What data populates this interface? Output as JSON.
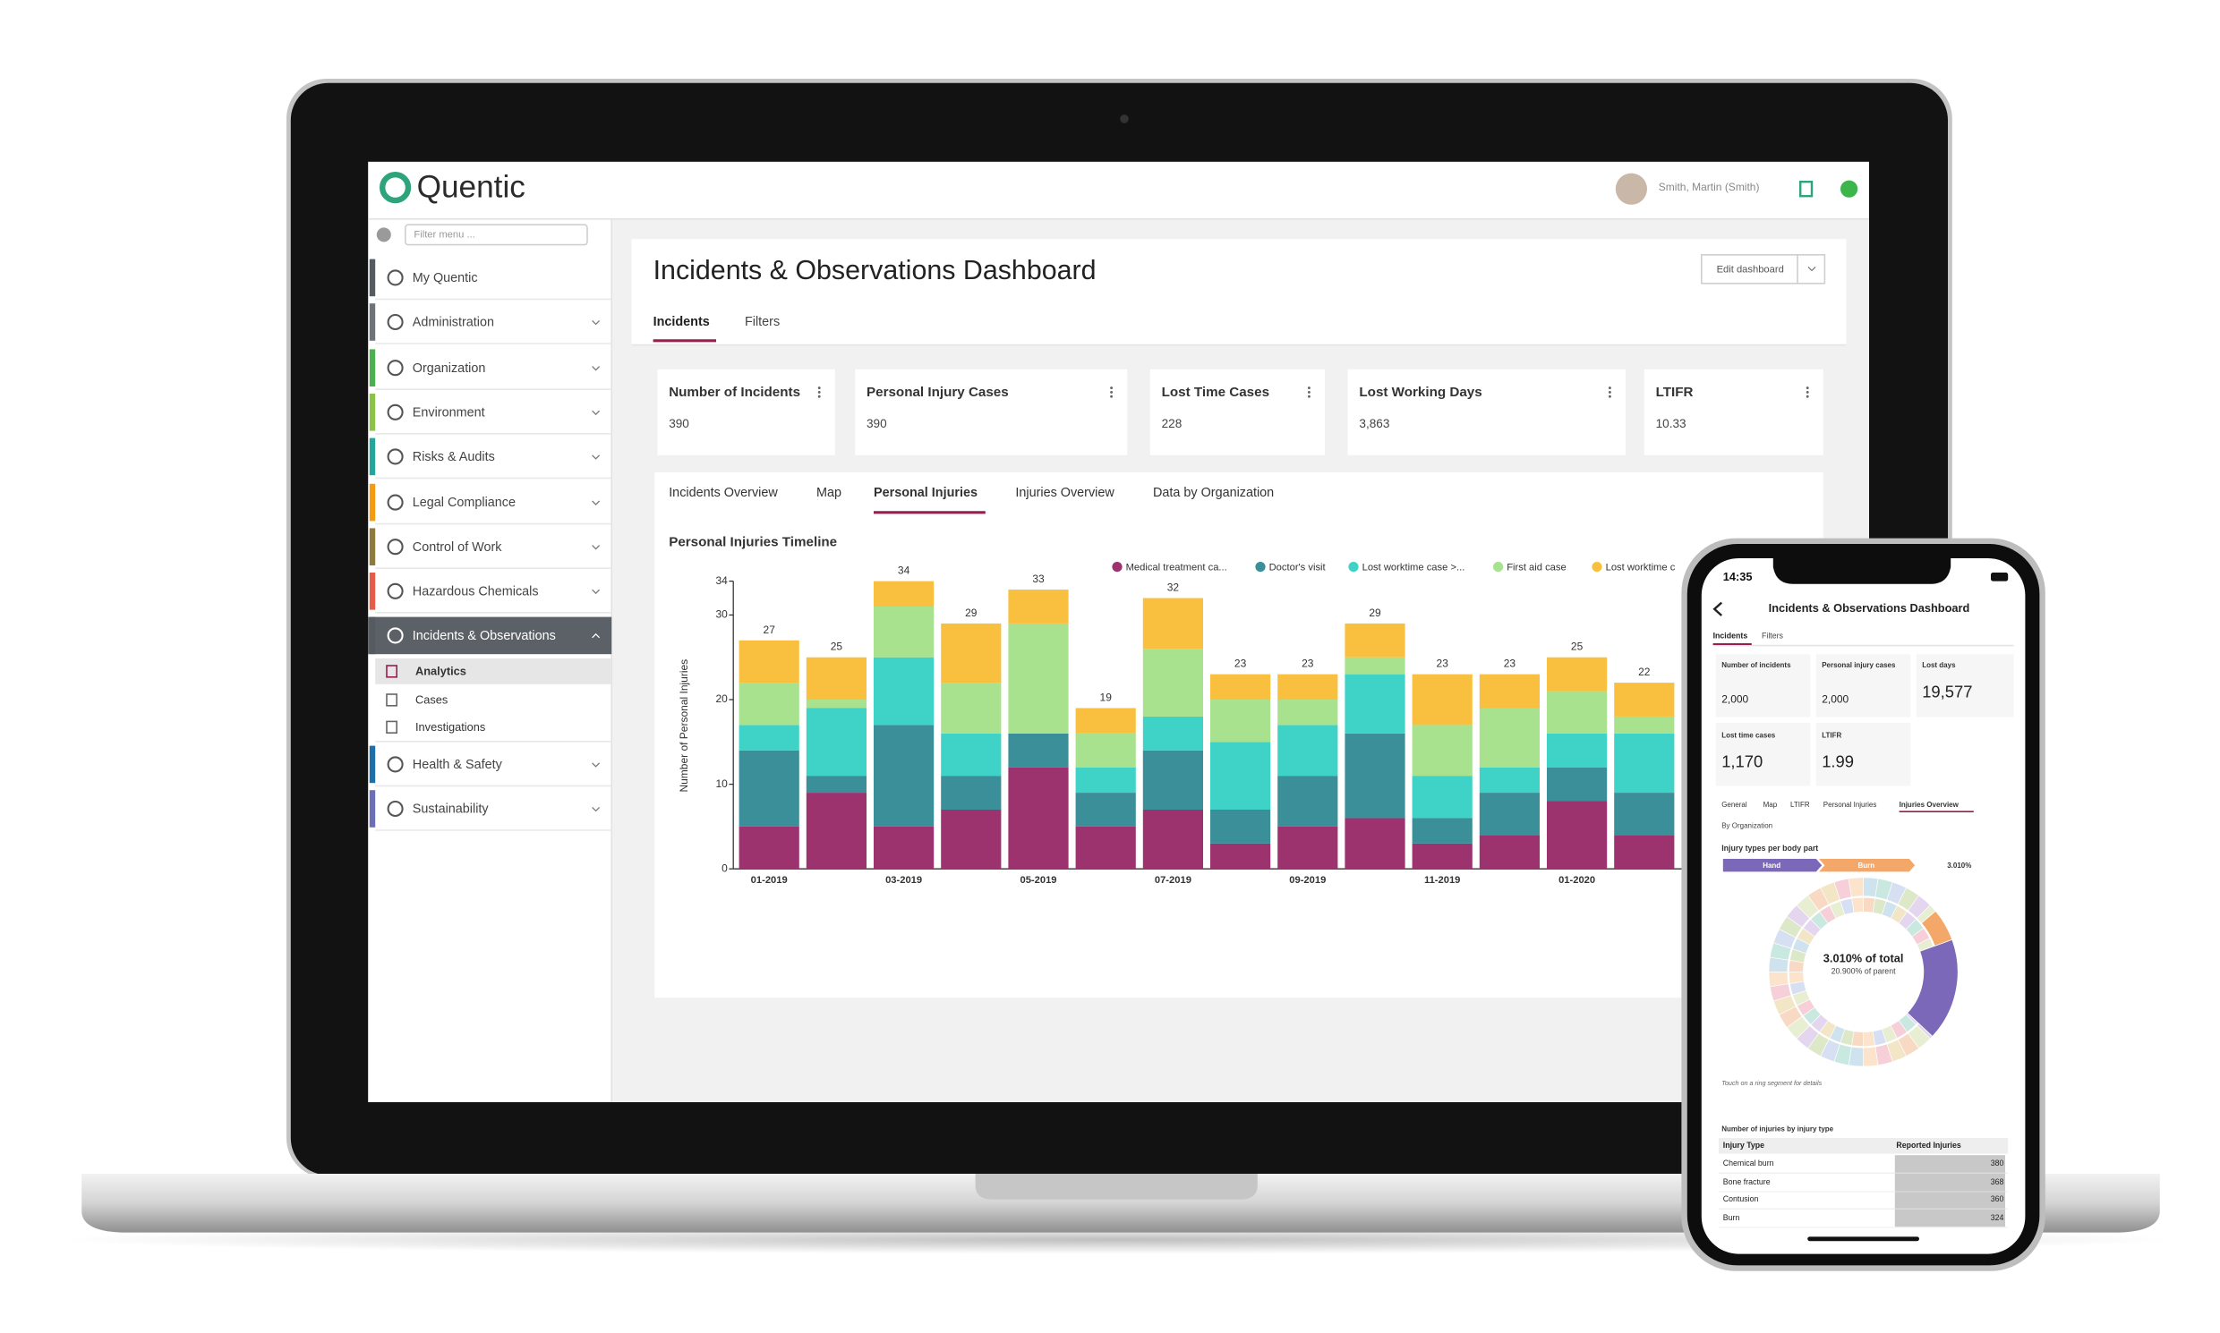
{
  "app": {
    "brand": "Quentic",
    "user": "Smith, Martin (Smith)",
    "filter_placeholder": "Filter menu ..."
  },
  "menu": [
    "My Quentic",
    "Administration",
    "Organization",
    "Environment",
    "Risks & Audits",
    "Legal Compliance",
    "Control of Work",
    "Hazardous Chemicals",
    "Incidents & Observations"
  ],
  "submenu": [
    "Analytics",
    "Cases",
    "Investigations"
  ],
  "menu_after": [
    "Health & Safety",
    "Sustainability"
  ],
  "dashboard": {
    "title": "Incidents & Observations Dashboard",
    "edit_button": "Edit dashboard",
    "tabs": [
      "Incidents",
      "Filters"
    ],
    "kpis": [
      {
        "label": "Number of Incidents",
        "value": "390"
      },
      {
        "label": "Personal Injury Cases",
        "value": "390"
      },
      {
        "label": "Lost Time Cases",
        "value": "228"
      },
      {
        "label": "Lost Working Days",
        "value": "3,863"
      },
      {
        "label": "LTIFR",
        "value": "10.33"
      }
    ],
    "chart_tabs": [
      "Incidents Overview",
      "Map",
      "Personal Injuries",
      "Injuries Overview",
      "Data by Organization"
    ]
  },
  "chart_data": {
    "type": "stacked-bar",
    "title": "Personal Injuries Timeline",
    "y_label": "Number of Personal Injuries",
    "categories": [
      "01-2019",
      null,
      "03-2019",
      null,
      "05-2019",
      null,
      "07-2019",
      null,
      "09-2019",
      null,
      "11-2019",
      null,
      "01-2020",
      null
    ],
    "series": [
      {
        "name": "Medical treatment ca...",
        "color": "#9c336f",
        "values": [
          5,
          9,
          5,
          7,
          12,
          5,
          7,
          3,
          5,
          6,
          3,
          4,
          8,
          4
        ]
      },
      {
        "name": "Doctor's visit",
        "color": "#3a8f99",
        "values": [
          9,
          2,
          12,
          4,
          4,
          4,
          7,
          4,
          6,
          10,
          3,
          5,
          4,
          5
        ]
      },
      {
        "name": "Lost worktime case >...",
        "color": "#3fd2c7",
        "values": [
          3,
          8,
          8,
          5,
          0,
          3,
          4,
          8,
          6,
          7,
          5,
          3,
          4,
          7
        ]
      },
      {
        "name": "First aid case",
        "color": "#a8e28e",
        "values": [
          5,
          1,
          6,
          6,
          13,
          4,
          8,
          5,
          3,
          2,
          6,
          7,
          5,
          2
        ]
      },
      {
        "name": "Lost worktime c",
        "color": "#f8c03e",
        "values": [
          5,
          5,
          3,
          7,
          4,
          3,
          6,
          3,
          3,
          4,
          6,
          4,
          4,
          4
        ]
      }
    ],
    "totals": [
      27,
      25,
      34,
      29,
      33,
      19,
      32,
      23,
      23,
      29,
      23,
      23,
      25,
      22
    ],
    "ylim": [
      0,
      34
    ],
    "yticks": [
      0,
      10,
      20,
      30,
      34
    ],
    "grid": false
  },
  "phone": {
    "time": "14:35",
    "title": "Incidents & Observations Dashboard",
    "tabs": [
      "Incidents",
      "Filters"
    ],
    "kpis": [
      {
        "label": "Number of incidents",
        "value": "2,000"
      },
      {
        "label": "Personal injury cases",
        "value": "2,000"
      },
      {
        "label": "Lost days",
        "value": "19,577"
      },
      {
        "label": "Lost time cases",
        "value": "1,170"
      },
      {
        "label": "LTIFR",
        "value": "1.99"
      }
    ],
    "subtabs": [
      "General",
      "Map",
      "LTIFR",
      "Personal Injuries",
      "Injuries Overview"
    ],
    "group": "By Organization",
    "sunburst_title": "Injury types per body part",
    "breadcrumb": [
      "Hand",
      "Burn"
    ],
    "breadcrumb_share": "3.010%",
    "center_main": "3.010% of total",
    "center_sub": "20.900% of parent",
    "hint": "Touch on a ring segment for details",
    "table_title": "Number of injuries by injury type",
    "table_header": [
      "Injury Type",
      "Reported Injuries"
    ],
    "table_rows": [
      [
        "Chemical burn",
        "380"
      ],
      [
        "Bone fracture",
        "368"
      ],
      [
        "Contusion",
        "360"
      ],
      [
        "Burn",
        "324"
      ]
    ]
  }
}
